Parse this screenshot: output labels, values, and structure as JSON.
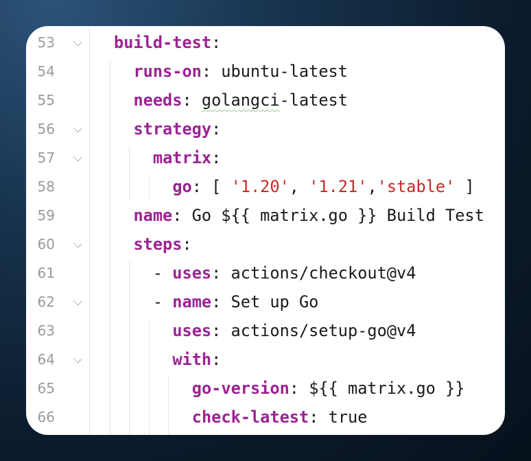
{
  "editor": {
    "colors": {
      "key": "#9b2393",
      "string": "#c72a26",
      "text": "#1a1a1a",
      "line_number": "#9a9a9a"
    },
    "lines": [
      {
        "number": "53",
        "fold": true,
        "indent": 0,
        "tokens": [
          {
            "t": "build-test",
            "c": "k"
          },
          {
            "t": ":",
            "c": "p"
          }
        ]
      },
      {
        "number": "54",
        "fold": false,
        "indent": 1,
        "tokens": [
          {
            "t": "runs-on",
            "c": "k"
          },
          {
            "t": ": ubuntu-latest",
            "c": "p"
          }
        ]
      },
      {
        "number": "55",
        "fold": false,
        "indent": 1,
        "tokens": [
          {
            "t": "needs",
            "c": "k"
          },
          {
            "t": ": ",
            "c": "p"
          },
          {
            "t": "golangci",
            "c": "w"
          },
          {
            "t": "-latest",
            "c": "p"
          }
        ]
      },
      {
        "number": "56",
        "fold": true,
        "indent": 1,
        "tokens": [
          {
            "t": "strategy",
            "c": "k"
          },
          {
            "t": ":",
            "c": "p"
          }
        ]
      },
      {
        "number": "57",
        "fold": true,
        "indent": 2,
        "tokens": [
          {
            "t": "matrix",
            "c": "k"
          },
          {
            "t": ":",
            "c": "p"
          }
        ]
      },
      {
        "number": "58",
        "fold": false,
        "indent": 3,
        "tokens": [
          {
            "t": "go",
            "c": "k"
          },
          {
            "t": ": [ ",
            "c": "p"
          },
          {
            "t": "'1.20'",
            "c": "s"
          },
          {
            "t": ", ",
            "c": "p"
          },
          {
            "t": "'1.21'",
            "c": "s"
          },
          {
            "t": ",",
            "c": "p"
          },
          {
            "t": "'stable'",
            "c": "s"
          },
          {
            "t": " ]",
            "c": "p"
          }
        ]
      },
      {
        "number": "59",
        "fold": false,
        "indent": 1,
        "tokens": [
          {
            "t": "name",
            "c": "k"
          },
          {
            "t": ": Go ${{ matrix.go }} Build Test",
            "c": "p"
          }
        ]
      },
      {
        "number": "60",
        "fold": true,
        "indent": 1,
        "tokens": [
          {
            "t": "steps",
            "c": "k"
          },
          {
            "t": ":",
            "c": "p"
          }
        ]
      },
      {
        "number": "61",
        "fold": false,
        "indent": 2,
        "tokens": [
          {
            "t": "- ",
            "c": "p"
          },
          {
            "t": "uses",
            "c": "k"
          },
          {
            "t": ": actions/checkout@v4",
            "c": "p"
          }
        ]
      },
      {
        "number": "62",
        "fold": true,
        "indent": 2,
        "tokens": [
          {
            "t": "- ",
            "c": "p"
          },
          {
            "t": "name",
            "c": "k"
          },
          {
            "t": ": Set up Go",
            "c": "p"
          }
        ]
      },
      {
        "number": "63",
        "fold": false,
        "indent": 3,
        "tokens": [
          {
            "t": "uses",
            "c": "k"
          },
          {
            "t": ": actions/setup-go@v4",
            "c": "p"
          }
        ]
      },
      {
        "number": "64",
        "fold": true,
        "indent": 3,
        "tokens": [
          {
            "t": "with",
            "c": "k"
          },
          {
            "t": ":",
            "c": "p"
          }
        ]
      },
      {
        "number": "65",
        "fold": false,
        "indent": 4,
        "tokens": [
          {
            "t": "go-version",
            "c": "k"
          },
          {
            "t": ": ${{ matrix.go }}",
            "c": "p"
          }
        ]
      },
      {
        "number": "66",
        "fold": false,
        "indent": 4,
        "tokens": [
          {
            "t": "check-latest",
            "c": "k"
          },
          {
            "t": ": true",
            "c": "p"
          }
        ]
      }
    ]
  }
}
